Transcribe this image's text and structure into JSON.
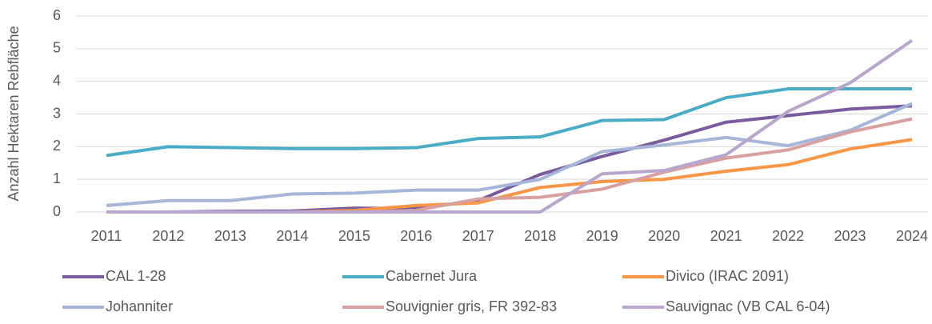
{
  "chart_data": {
    "type": "line",
    "y_label": "Anzahl Hektaren Rebfläche",
    "categories": [
      "2011",
      "2012",
      "2013",
      "2014",
      "2015",
      "2016",
      "2017",
      "2018",
      "2019",
      "2020",
      "2021",
      "2022",
      "2023",
      "2024"
    ],
    "series": [
      {
        "name": "CAL 1-28",
        "color": "#7a5c9e",
        "values": [
          0,
          0,
          0.02,
          0.03,
          0.12,
          0.1,
          0.35,
          1.15,
          1.7,
          2.2,
          2.75,
          2.95,
          3.15,
          3.25
        ]
      },
      {
        "name": "Cabernet Jura",
        "color": "#4bacc6",
        "values": [
          1.73,
          2.0,
          1.97,
          1.94,
          1.94,
          1.97,
          2.25,
          2.3,
          2.8,
          2.83,
          3.5,
          3.77,
          3.77,
          3.77
        ]
      },
      {
        "name": "Divico (IRAC 2091)",
        "color": "#f79646",
        "values": [
          0,
          0,
          0,
          0,
          0.05,
          0.2,
          0.28,
          0.75,
          0.93,
          1.0,
          1.25,
          1.45,
          1.93,
          2.22
        ]
      },
      {
        "name": "Johanniter",
        "color": "#a5b6d9",
        "values": [
          0.2,
          0.35,
          0.35,
          0.55,
          0.58,
          0.67,
          0.67,
          1.0,
          1.85,
          2.05,
          2.28,
          2.03,
          2.5,
          3.32
        ]
      },
      {
        "name": "Souvignier gris, FR 392-83",
        "color": "#d9a0a0",
        "values": [
          0,
          0,
          0,
          0,
          0,
          0.05,
          0.4,
          0.45,
          0.7,
          1.22,
          1.65,
          1.9,
          2.45,
          2.85
        ]
      },
      {
        "name": "Sauvignac (VB CAL 6-04)",
        "color": "#b8a6cc",
        "values": [
          0,
          0,
          0,
          0,
          0,
          0,
          0,
          0,
          1.17,
          1.27,
          1.75,
          3.08,
          3.95,
          5.25
        ]
      }
    ],
    "ylim": [
      0,
      6
    ],
    "yticks": [
      0,
      1,
      2,
      3,
      4,
      5,
      6
    ],
    "grid": true,
    "legend": "bottom"
  }
}
